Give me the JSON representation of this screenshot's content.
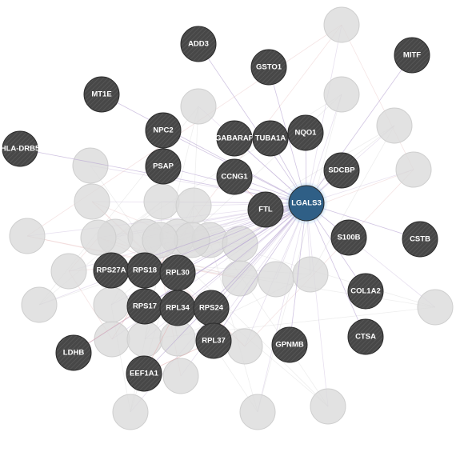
{
  "colors": {
    "node_fill": "#4a4a4a",
    "node_stripe": "#5a5a5a",
    "selected_fill": "#2f5f86",
    "selected_stroke": "#7fb2dc",
    "ghost_fill": "#dadada",
    "edge_purple": "#b9a6d2",
    "edge_pink": "#e3b1b1",
    "edge_gray": "#cfcfcf"
  },
  "network": {
    "selected": "LGALS3",
    "nodes": [
      {
        "id": "LGALS3",
        "label": "LGALS3"
      },
      {
        "id": "ADD3",
        "label": "ADD3"
      },
      {
        "id": "GSTO1",
        "label": "GSTO1"
      },
      {
        "id": "MITF",
        "label": "MITF"
      },
      {
        "id": "MT1E",
        "label": "MT1E"
      },
      {
        "id": "NPC2",
        "label": "NPC2"
      },
      {
        "id": "GABARAP",
        "label": "GABARAP"
      },
      {
        "id": "TUBA1A",
        "label": "TUBA1A"
      },
      {
        "id": "NQO1",
        "label": "NQO1"
      },
      {
        "id": "HLA-DRB5",
        "label": "HLA-DRB5"
      },
      {
        "id": "PSAP",
        "label": "PSAP"
      },
      {
        "id": "CCNG1",
        "label": "CCNG1"
      },
      {
        "id": "SDCBP",
        "label": "SDCBP"
      },
      {
        "id": "FTL",
        "label": "FTL"
      },
      {
        "id": "S100B",
        "label": "S100B"
      },
      {
        "id": "CSTB",
        "label": "CSTB"
      },
      {
        "id": "RPS27A",
        "label": "RPS27A"
      },
      {
        "id": "RPS18",
        "label": "RPS18"
      },
      {
        "id": "RPL30",
        "label": "RPL30"
      },
      {
        "id": "RPS17",
        "label": "RPS17"
      },
      {
        "id": "RPL34",
        "label": "RPL34"
      },
      {
        "id": "RPS24",
        "label": "RPS24"
      },
      {
        "id": "COL1A2",
        "label": "COL1A2"
      },
      {
        "id": "LDHB",
        "label": "LDHB"
      },
      {
        "id": "RPL37",
        "label": "RPL37"
      },
      {
        "id": "GPNMB",
        "label": "GPNMB"
      },
      {
        "id": "CTSA",
        "label": "CTSA"
      },
      {
        "id": "EEF1A1",
        "label": "EEF1A1"
      }
    ],
    "edges": [
      [
        "LGALS3",
        "ADD3"
      ],
      [
        "LGALS3",
        "GSTO1"
      ],
      [
        "LGALS3",
        "MITF"
      ],
      [
        "LGALS3",
        "MT1E"
      ],
      [
        "LGALS3",
        "NPC2"
      ],
      [
        "LGALS3",
        "GABARAP"
      ],
      [
        "LGALS3",
        "TUBA1A"
      ],
      [
        "LGALS3",
        "NQO1"
      ],
      [
        "LGALS3",
        "HLA-DRB5"
      ],
      [
        "LGALS3",
        "PSAP"
      ],
      [
        "LGALS3",
        "CCNG1"
      ],
      [
        "LGALS3",
        "SDCBP"
      ],
      [
        "LGALS3",
        "FTL"
      ],
      [
        "LGALS3",
        "S100B"
      ],
      [
        "LGALS3",
        "CSTB"
      ],
      [
        "LGALS3",
        "COL1A2"
      ],
      [
        "LGALS3",
        "GPNMB"
      ],
      [
        "LGALS3",
        "CTSA"
      ],
      [
        "LGALS3",
        "RPL30"
      ],
      [
        "LGALS3",
        "RPS18"
      ],
      [
        "LGALS3",
        "RPS27A"
      ],
      [
        "LGALS3",
        "RPL34"
      ],
      [
        "LGALS3",
        "RPS24"
      ],
      [
        "LGALS3",
        "RPL37"
      ],
      [
        "LGALS3",
        "EEF1A1"
      ],
      [
        "LGALS3",
        "RPS17"
      ],
      [
        "LGALS3",
        "LDHB"
      ],
      [
        "RPS27A",
        "RPS18"
      ],
      [
        "RPS18",
        "RPL30"
      ],
      [
        "RPS17",
        "RPL34"
      ],
      [
        "RPL34",
        "RPS24"
      ],
      [
        "RPL30",
        "RPL34"
      ],
      [
        "RPS18",
        "RPS17"
      ],
      [
        "RPS24",
        "RPL37"
      ],
      [
        "RPL37",
        "EEF1A1"
      ],
      [
        "LDHB",
        "RPS17"
      ],
      [
        "EEF1A1",
        "RPL34"
      ],
      [
        "PSAP",
        "NPC2"
      ],
      [
        "FTL",
        "CCNG1"
      ]
    ]
  }
}
